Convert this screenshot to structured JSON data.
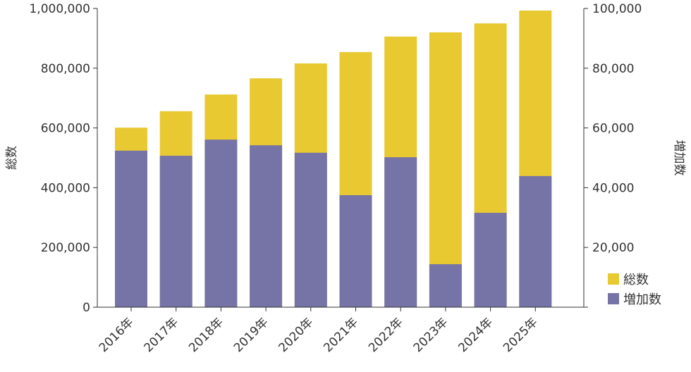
{
  "chart_data": {
    "type": "bar",
    "categories": [
      "2016年",
      "2017年",
      "2018年",
      "2019年",
      "2020年",
      "2021年",
      "2022年",
      "2023年",
      "2024年",
      "2025年"
    ],
    "series": [
      {
        "name": "総数",
        "axis": "left",
        "color": "#E8C932",
        "values": [
          601000,
          656000,
          712000,
          766000,
          816000,
          854000,
          906000,
          920000,
          950000,
          993000
        ]
      },
      {
        "name": "増加数",
        "axis": "right",
        "color": "#7674A7",
        "values": [
          52400,
          50700,
          56100,
          54200,
          51700,
          37500,
          50200,
          14400,
          31600,
          43900
        ]
      }
    ],
    "ylabel": "総数",
    "ylabel_right": "増加数",
    "ylim": [
      0,
      1000000
    ],
    "ylim_right": [
      0,
      100000
    ],
    "yticks": [
      "0",
      "200,000",
      "400,000",
      "600,000",
      "800,000",
      "1,000,000"
    ],
    "yticks_right": [
      "20,000",
      "40,000",
      "60,000",
      "80,000",
      "100,000"
    ],
    "grid": false,
    "legend": "bottom-right",
    "bars_overlaid": true
  }
}
